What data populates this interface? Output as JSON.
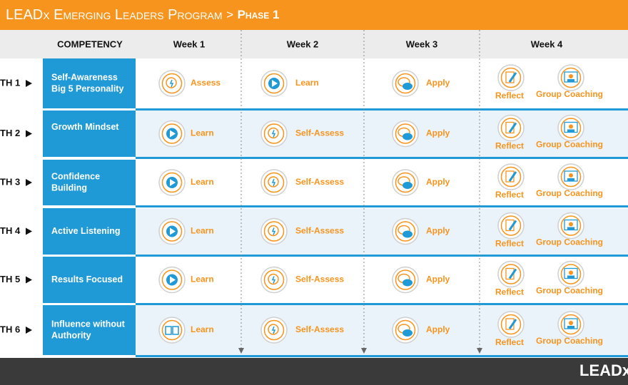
{
  "header": {
    "title": "LEADx Emerging Leaders Program",
    "separator": ">",
    "phase": "Phase 1"
  },
  "columns": [
    "COMPETENCY",
    "Week 1",
    "Week 2",
    "Week 3",
    "Week 4"
  ],
  "rows": [
    {
      "label": "TH 1",
      "competency": [
        "Self-Awareness",
        "Big 5 Personality"
      ],
      "cells": [
        [
          "Assess"
        ],
        [
          "Learn"
        ],
        [
          "Apply"
        ],
        [
          "Reflect",
          "Group Coaching"
        ]
      ]
    },
    {
      "label": "TH 2",
      "competency": [
        "Growth Mindset"
      ],
      "cells": [
        [
          "Learn"
        ],
        [
          "Self-Assess"
        ],
        [
          "Apply"
        ],
        [
          "Reflect",
          "Group Coaching"
        ]
      ]
    },
    {
      "label": "TH 3",
      "competency": [
        "Confidence",
        "Building"
      ],
      "cells": [
        [
          "Learn"
        ],
        [
          "Self-Assess"
        ],
        [
          "Apply"
        ],
        [
          "Reflect",
          "Group Coaching"
        ]
      ]
    },
    {
      "label": "TH 4",
      "competency": [
        "Active Listening"
      ],
      "cells": [
        [
          "Learn"
        ],
        [
          "Self-Assess"
        ],
        [
          "Apply"
        ],
        [
          "Reflect",
          "Group Coaching"
        ]
      ]
    },
    {
      "label": "TH 5",
      "competency": [
        "Results Focused"
      ],
      "cells": [
        [
          "Learn"
        ],
        [
          "Self-Assess"
        ],
        [
          "Apply"
        ],
        [
          "Reflect",
          "Group Coaching"
        ]
      ]
    },
    {
      "label": "TH 6",
      "competency": [
        "Influence without",
        "Authority"
      ],
      "cells": [
        [
          "Learn"
        ],
        [
          "Self-Assess"
        ],
        [
          "Apply"
        ],
        [
          "Reflect",
          "Group Coaching"
        ]
      ]
    }
  ],
  "footer": {
    "brand": "LEADx"
  }
}
